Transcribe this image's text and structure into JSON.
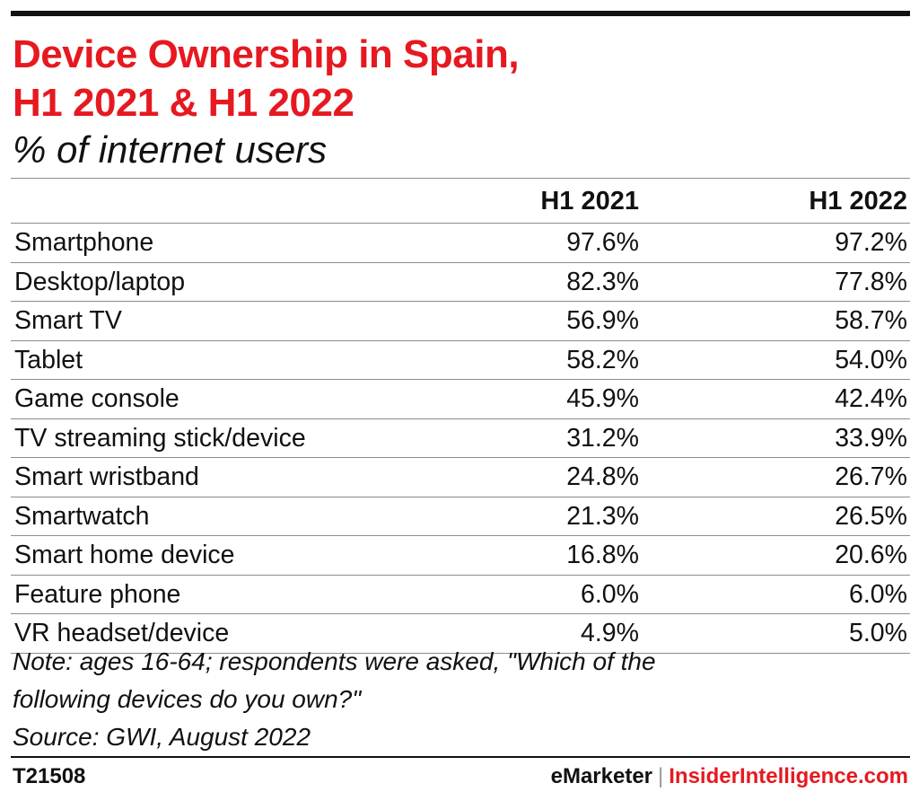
{
  "colors": {
    "accent": "#e61920",
    "text": "#111111",
    "rule": "#8c8c8c"
  },
  "title_line1": "Device Ownership in Spain,",
  "title_line2": "H1 2021 & H1 2022",
  "subtitle": "% of internet users",
  "chart_data": {
    "type": "table",
    "columns": [
      "",
      "H1 2021",
      "H1 2022"
    ],
    "rows": [
      {
        "label": "Smartphone",
        "h1_2021": "97.6%",
        "h1_2022": "97.2%"
      },
      {
        "label": "Desktop/laptop",
        "h1_2021": "82.3%",
        "h1_2022": "77.8%"
      },
      {
        "label": "Smart TV",
        "h1_2021": "56.9%",
        "h1_2022": "58.7%"
      },
      {
        "label": "Tablet",
        "h1_2021": "58.2%",
        "h1_2022": "54.0%"
      },
      {
        "label": "Game console",
        "h1_2021": "45.9%",
        "h1_2022": "42.4%"
      },
      {
        "label": "TV streaming stick/device",
        "h1_2021": "31.2%",
        "h1_2022": "33.9%"
      },
      {
        "label": "Smart wristband",
        "h1_2021": "24.8%",
        "h1_2022": "26.7%"
      },
      {
        "label": "Smartwatch",
        "h1_2021": "21.3%",
        "h1_2022": "26.5%"
      },
      {
        "label": "Smart home device",
        "h1_2021": "16.8%",
        "h1_2022": "20.6%"
      },
      {
        "label": "Feature phone",
        "h1_2021": "6.0%",
        "h1_2022": "6.0%"
      },
      {
        "label": "VR headset/device",
        "h1_2021": "4.9%",
        "h1_2022": "5.0%"
      }
    ]
  },
  "note_line1": "Note: ages 16-64; respondents were asked, \"Which of the",
  "note_line2": "following devices do you own?\"",
  "source": "Source: GWI, August 2022",
  "footer": {
    "chart_id": "T21508",
    "brand_a": "eMarketer",
    "separator": "|",
    "brand_b": "InsiderIntelligence.com"
  }
}
